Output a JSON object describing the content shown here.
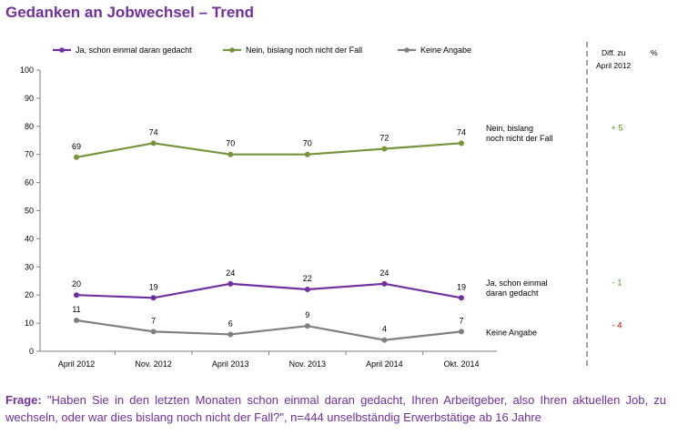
{
  "title": "Gedanken an Jobwechsel – Trend",
  "chart_data": {
    "type": "line",
    "categories": [
      "April 2012",
      "Nov. 2012",
      "April 2013",
      "Nov. 2013",
      "April 2014",
      "Okt. 2014"
    ],
    "ylim": [
      0,
      100
    ],
    "yticks": [
      0,
      10,
      20,
      30,
      40,
      50,
      60,
      70,
      80,
      90,
      100
    ],
    "grid": false,
    "legend_position": "top",
    "series": [
      {
        "name": "Ja, schon einmal daran gedacht",
        "end_label": [
          "Ja, schon einmal",
          "daran gedacht"
        ],
        "values": [
          20,
          19,
          24,
          22,
          24,
          19
        ],
        "color": "#7030A0",
        "diff": "- 1",
        "diff_color": "#4E9A2E"
      },
      {
        "name": "Nein, bislang noch nicht der Fall",
        "end_label": [
          "Nein, bislang",
          "noch nicht der Fall"
        ],
        "values": [
          69,
          74,
          70,
          70,
          72,
          74
        ],
        "color": "#77933C",
        "diff": "+ 5",
        "diff_color": "#4E9A2E"
      },
      {
        "name": "Keine Angabe",
        "end_label": [
          "Keine Angabe"
        ],
        "values": [
          11,
          7,
          6,
          9,
          4,
          7
        ],
        "color": "#808080",
        "diff": "- 4",
        "diff_color": "#C00000"
      }
    ],
    "diff_header": {
      "line1": "Diff. zu",
      "unit": "%",
      "line2": "April 2012"
    }
  },
  "question": {
    "label": "Frage:",
    "text": "\"Haben Sie in den letzten Monaten schon einmal daran gedacht, Ihren Arbeitgeber, also Ihren aktuellen Job, zu wechseln, oder war dies bislang noch nicht der Fall?\", n=444 unselbständig Erwerbstätige ab 16 Jahre"
  },
  "colors": {
    "title": "#7030A0",
    "axis": "#808080",
    "divider": "#404040"
  }
}
